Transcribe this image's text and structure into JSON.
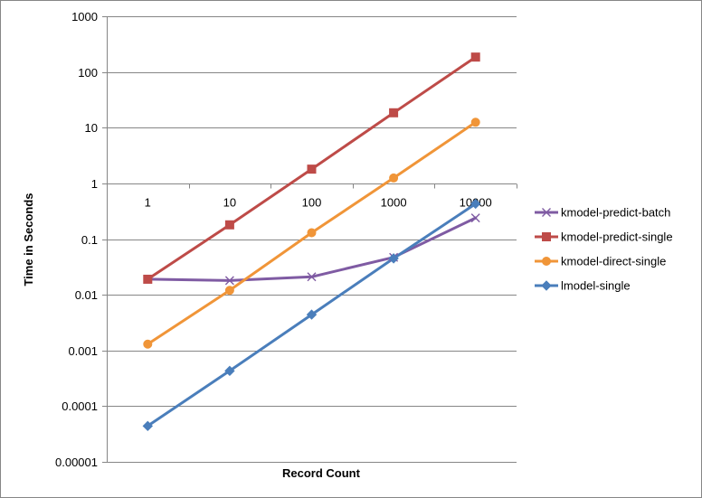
{
  "chart_data": {
    "type": "line",
    "title": "",
    "xlabel": "Record Count",
    "ylabel": "Time in Seconds",
    "y_scale": "log",
    "ylim": [
      1e-05,
      1000
    ],
    "grid": true,
    "legend_position": "right",
    "categories": [
      "1",
      "10",
      "100",
      "1000",
      "10000"
    ],
    "y_ticks": [
      "0.00001",
      "0.0001",
      "0.001",
      "0.01",
      "0.1",
      "1",
      "10",
      "100",
      "1000"
    ],
    "series": [
      {
        "name": "kmodel-predict-batch",
        "color": "#7F5BA3",
        "marker": "x",
        "values": [
          0.019,
          0.018,
          0.021,
          0.047,
          0.24
        ]
      },
      {
        "name": "kmodel-predict-single",
        "color": "#BE4B48",
        "marker": "square",
        "values": [
          0.019,
          0.18,
          1.8,
          18.5,
          185
        ]
      },
      {
        "name": "kmodel-direct-single",
        "color": "#F09538",
        "marker": "circle",
        "values": [
          0.0013,
          0.012,
          0.13,
          1.25,
          12.5
        ]
      },
      {
        "name": "lmodel-single",
        "color": "#4A7EBB",
        "marker": "diamond",
        "values": [
          4.4e-05,
          0.00043,
          0.0044,
          0.045,
          0.43
        ]
      }
    ]
  }
}
